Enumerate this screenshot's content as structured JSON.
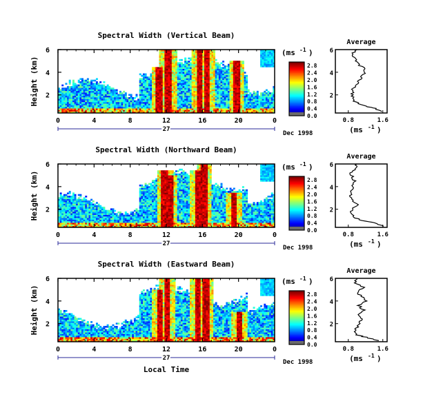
{
  "chart_data": [
    {
      "type": "heatmap",
      "title": "Spectral Width (Vertical Beam)",
      "ylabel": "Height (km)",
      "x_ticks": [
        "0",
        "4",
        "8",
        "12",
        "16",
        "20",
        "0"
      ],
      "xlim": [
        0,
        24
      ],
      "y_ticks": [
        "2",
        "4",
        "6"
      ],
      "ylim": [
        0.4,
        6
      ],
      "day_label": "27",
      "date_label": "Dec 1998",
      "colorbar": {
        "unit": "(ms",
        "unit_exp": "-1",
        "tick_labels": [
          "0.0",
          "0.4",
          "0.8",
          "1.2",
          "1.6",
          "2.0",
          "2.4",
          "2.8"
        ],
        "range": [
          0,
          3.0
        ]
      },
      "average": {
        "title": "Average",
        "xlabel": "(ms",
        "xlabel_exp": "-1",
        "x_ticks": [
          "0.8",
          "1.6"
        ],
        "xlim": [
          0.5,
          1.7
        ],
        "y_ticks": [
          "2",
          "4",
          "6"
        ],
        "ylim": [
          0.4,
          6
        ],
        "height": [
          0.5,
          0.8,
          1.0,
          1.3,
          1.6,
          2.0,
          2.4,
          2.8,
          3.2,
          3.6,
          4.0,
          4.4,
          4.8,
          5.2,
          5.6,
          6.0
        ],
        "width": [
          1.55,
          1.45,
          1.2,
          1.0,
          0.9,
          0.88,
          0.9,
          0.95,
          1.05,
          1.1,
          1.2,
          1.15,
          1.0,
          0.95,
          0.9,
          1.0
        ]
      },
      "events": [
        {
          "t": 11.2,
          "h": 4.5
        },
        {
          "t": 12.2,
          "h": 6.0
        },
        {
          "t": 15.7,
          "h": 6.0
        },
        {
          "t": 16.5,
          "h": 6.0
        },
        {
          "t": 19.8,
          "h": 5.0
        }
      ]
    },
    {
      "type": "heatmap",
      "title": "Spectral Width (Northward Beam)",
      "ylabel": "Height (km)",
      "x_ticks": [
        "0",
        "4",
        "8",
        "12",
        "16",
        "20",
        "0"
      ],
      "xlim": [
        0,
        24
      ],
      "y_ticks": [
        "2",
        "4",
        "6"
      ],
      "ylim": [
        0.4,
        6
      ],
      "day_label": "27",
      "date_label": "Dec 1998",
      "colorbar": {
        "unit": "(ms",
        "unit_exp": "-1",
        "tick_labels": [
          "0.0",
          "0.4",
          "0.8",
          "1.2",
          "1.6",
          "2.0",
          "2.4",
          "2.8"
        ],
        "range": [
          0,
          3.0
        ]
      },
      "average": {
        "title": "Average",
        "xlabel": "(ms",
        "xlabel_exp": "-1",
        "x_ticks": [
          "0.8",
          "1.6"
        ],
        "xlim": [
          0.5,
          1.7
        ],
        "y_ticks": [
          "2",
          "4",
          "6"
        ],
        "ylim": [
          0.4,
          6
        ],
        "height": [
          0.5,
          0.8,
          1.0,
          1.3,
          1.6,
          2.0,
          2.4,
          2.8,
          3.2,
          3.6,
          4.0,
          4.4,
          4.8,
          5.2,
          5.6,
          6.0
        ],
        "width": [
          1.6,
          1.4,
          1.1,
          0.95,
          0.85,
          0.9,
          1.0,
          0.9,
          0.85,
          0.85,
          0.9,
          0.95,
          0.9,
          0.85,
          0.95,
          1.0
        ]
      },
      "events": [
        {
          "t": 11.8,
          "h": 5.5
        },
        {
          "t": 12.4,
          "h": 5.0
        },
        {
          "t": 15.6,
          "h": 5.5
        },
        {
          "t": 16.2,
          "h": 6.0
        },
        {
          "t": 19.5,
          "h": 3.5
        }
      ]
    },
    {
      "type": "heatmap",
      "title": "Spectral Width (Eastward Beam)",
      "ylabel": "Height (km)",
      "x_ticks": [
        "0",
        "4",
        "8",
        "12",
        "16",
        "20",
        "0"
      ],
      "xlim": [
        0,
        24
      ],
      "y_ticks": [
        "2",
        "4",
        "6"
      ],
      "ylim": [
        0.4,
        6
      ],
      "day_label": "27",
      "date_label": "Dec 1998",
      "xlabel": "Local Time",
      "colorbar": {
        "unit": "(ms",
        "unit_exp": "-1",
        "tick_labels": [
          "0.0",
          "0.4",
          "0.8",
          "1.2",
          "1.6",
          "2.0",
          "2.4",
          "2.8"
        ],
        "range": [
          0,
          3.0
        ]
      },
      "average": {
        "title": "Average",
        "xlabel": "(ms",
        "xlabel_exp": "-1",
        "x_ticks": [
          "0.8",
          "1.6"
        ],
        "xlim": [
          0.5,
          1.7
        ],
        "y_ticks": [
          "2",
          "4",
          "6"
        ],
        "ylim": [
          0.4,
          6
        ],
        "height": [
          0.5,
          0.8,
          1.0,
          1.3,
          1.6,
          2.0,
          2.4,
          2.8,
          3.2,
          3.6,
          4.0,
          4.4,
          4.8,
          5.2,
          5.6,
          6.0
        ],
        "width": [
          1.5,
          1.2,
          1.0,
          0.95,
          1.0,
          1.05,
          1.1,
          1.0,
          1.15,
          1.05,
          1.2,
          1.1,
          1.0,
          1.15,
          0.95,
          1.0
        ]
      },
      "events": [
        {
          "t": 11.3,
          "h": 5.0
        },
        {
          "t": 12.1,
          "h": 6.0
        },
        {
          "t": 15.5,
          "h": 6.0
        },
        {
          "t": 16.4,
          "h": 6.0
        },
        {
          "t": 20.1,
          "h": 3.0
        }
      ]
    }
  ]
}
